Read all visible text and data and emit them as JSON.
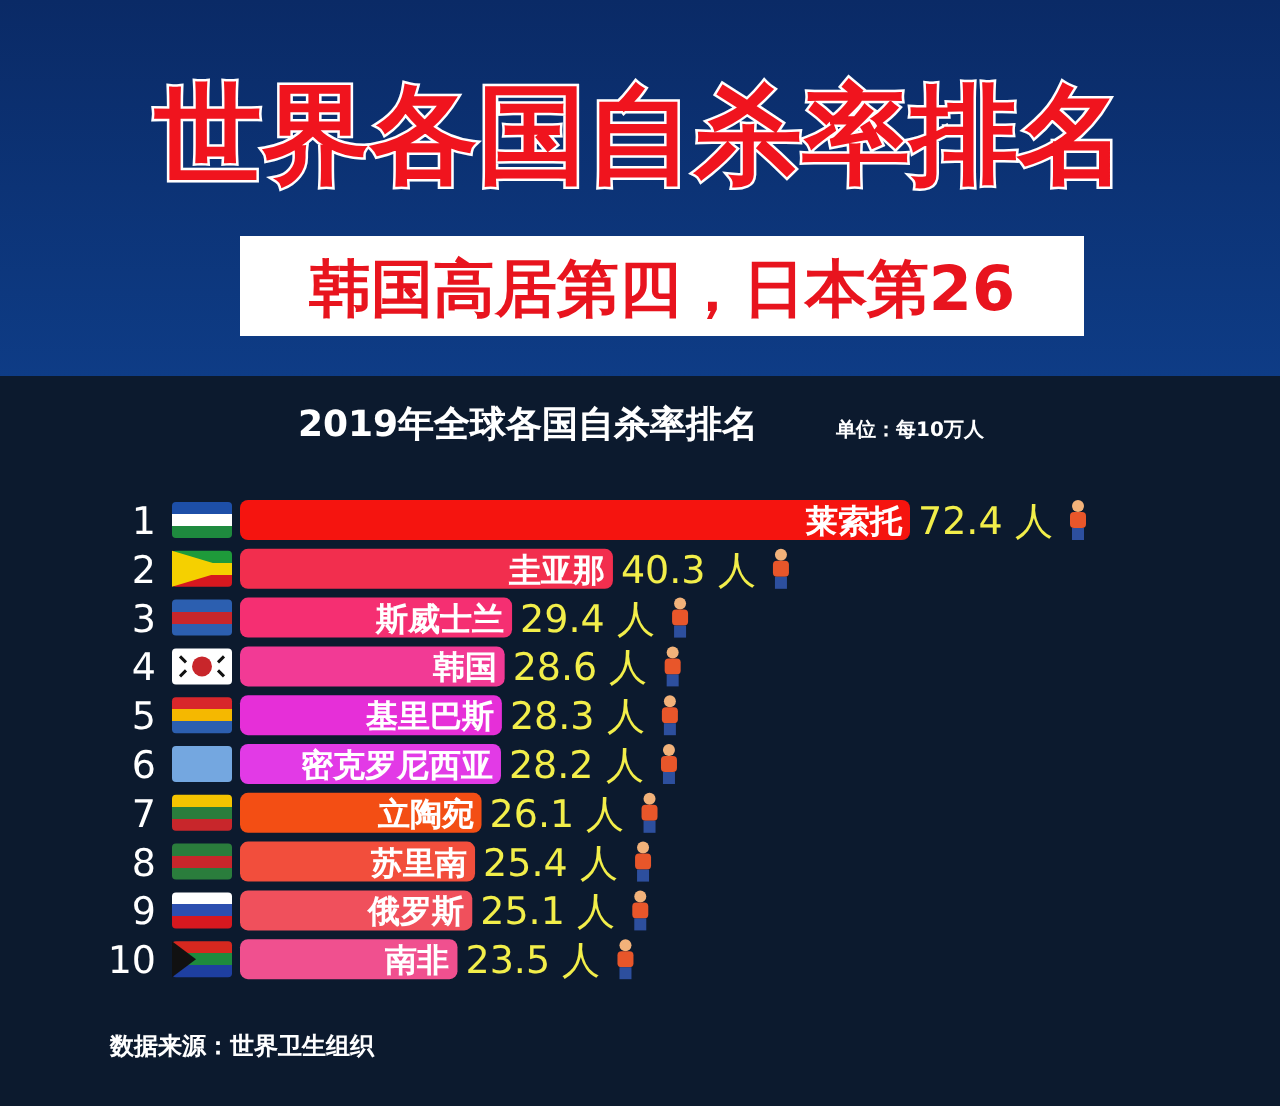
{
  "chart_data": {
    "type": "bar",
    "orientation": "horizontal",
    "title": "世界各国自杀率排名",
    "subtitle": "韩国高居第四，日本第26",
    "categories": [
      "莱索托",
      "圭亚那",
      "斯威士兰",
      "韩国",
      "基里巴斯",
      "密克罗尼西亚",
      "立陶宛",
      "苏里南",
      "俄罗斯",
      "南非"
    ],
    "values": [
      72.4,
      40.3,
      29.4,
      28.6,
      28.3,
      28.2,
      26.1,
      25.4,
      25.1,
      23.5
    ],
    "value_labels": [
      "72.4 人",
      "40.3 人",
      "29.4 人",
      "28.6 人",
      "28.3 人",
      "28.2 人",
      "26.1 人",
      "25.4 人",
      "25.1 人",
      "23.5 人"
    ],
    "colors": [
      "#f5140f",
      "#f22e4e",
      "#f52f72",
      "#f23a95",
      "#e62fd8",
      "#e23ae6",
      "#f34e14",
      "#f24e3c",
      "#f0505c",
      "#f0508f"
    ],
    "xlabel": "单位：每10万人",
    "annotations": [
      "2019年全球各国自杀率排名",
      "数据来源：世界卫生组织",
      "1",
      "2",
      "3",
      "4",
      "5",
      "6",
      "7",
      "8",
      "9",
      "10"
    ]
  }
}
